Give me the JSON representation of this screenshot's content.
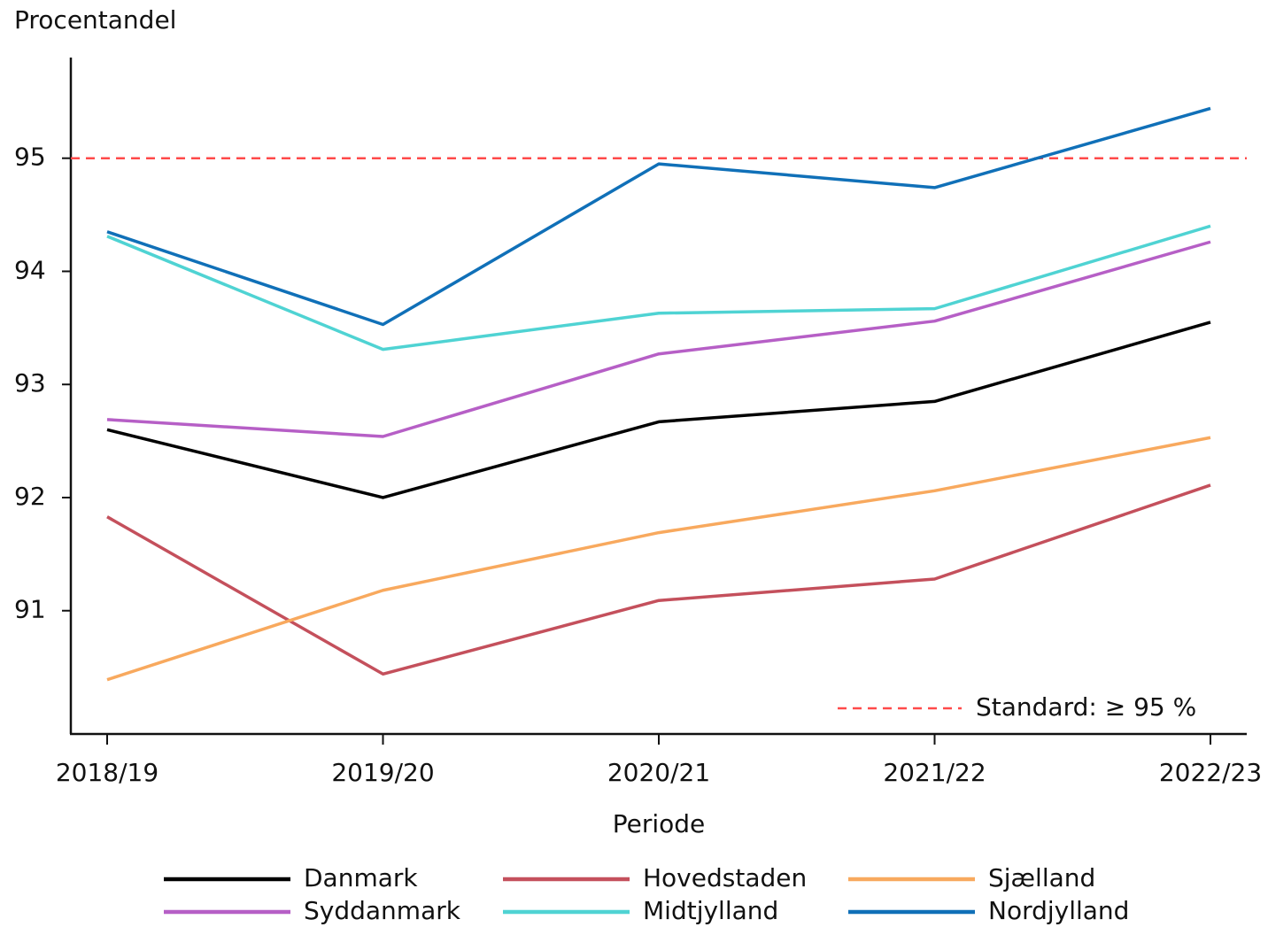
{
  "chart_data": {
    "type": "line",
    "y_label": "Procentandel",
    "x_label": "Periode",
    "categories": [
      "2018/19",
      "2019/20",
      "2020/21",
      "2021/22",
      "2022/23"
    ],
    "series": [
      {
        "name": "Danmark",
        "color": "#000000",
        "values": [
          92.6,
          92.0,
          92.67,
          92.85,
          93.55
        ]
      },
      {
        "name": "Hovedstaden",
        "color": "#c4505c",
        "values": [
          91.83,
          90.44,
          91.09,
          91.28,
          92.11
        ]
      },
      {
        "name": "Sjælland",
        "color": "#f8a95e",
        "values": [
          90.39,
          91.18,
          91.69,
          92.06,
          92.53
        ]
      },
      {
        "name": "Syddanmark",
        "color": "#b65fc6",
        "values": [
          92.69,
          92.54,
          93.27,
          93.56,
          94.26
        ]
      },
      {
        "name": "Midtjylland",
        "color": "#4fd3d3",
        "values": [
          94.31,
          93.31,
          93.63,
          93.67,
          94.4
        ]
      },
      {
        "name": "Nordjylland",
        "color": "#1070b8",
        "values": [
          94.35,
          93.53,
          94.95,
          94.74,
          95.44
        ]
      }
    ],
    "reference": {
      "value": 95,
      "label": "Standard: ≥ 95 %",
      "color": "#ff4a4a"
    },
    "ylim": [
      89.91,
      95.89
    ],
    "yticks": [
      91,
      92,
      93,
      94,
      95
    ]
  }
}
